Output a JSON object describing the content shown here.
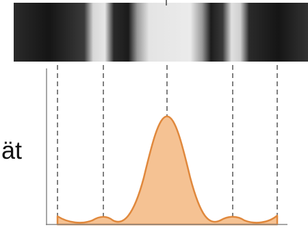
{
  "label": "ät"
}
